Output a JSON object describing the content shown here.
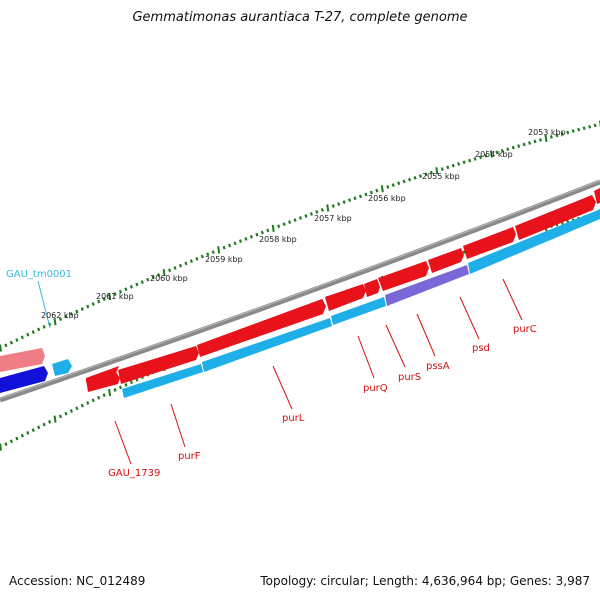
{
  "title": "Gemmatimonas aurantiaca T-27, complete genome",
  "footer": {
    "accession": "Accession: NC_012489",
    "summary": "Topology: circular; Length: 4,636,964 bp; Genes: 3,987"
  },
  "colors": {
    "backbone": "#8a8a8a",
    "gene_red": "#e8121a",
    "gene_blue": "#1eaee8",
    "gene_purple": "#7b68d8",
    "gene_darkblue": "#1010d8",
    "gene_pink": "#ee7d86",
    "tick_green": "#1f7a1f",
    "label_red": "#d41010",
    "label_cyan": "#3ab8e0"
  },
  "scale_labels": [
    "2053 kbp",
    "2054 kbp",
    "2055 kbp",
    "2056 kbp",
    "2057 kbp",
    "2058 kbp",
    "2059 kbp",
    "2060 kbp",
    "2061 kbp",
    "2062 kbp"
  ],
  "gene_labels": {
    "GAU_tm0001": "GAU_tm0001",
    "GAU_1739": "GAU_1739",
    "purF": "purF",
    "purL": "purL",
    "purQ": "purQ",
    "purS": "purS",
    "pssA": "pssA",
    "psd": "psd",
    "purC": "purC"
  }
}
